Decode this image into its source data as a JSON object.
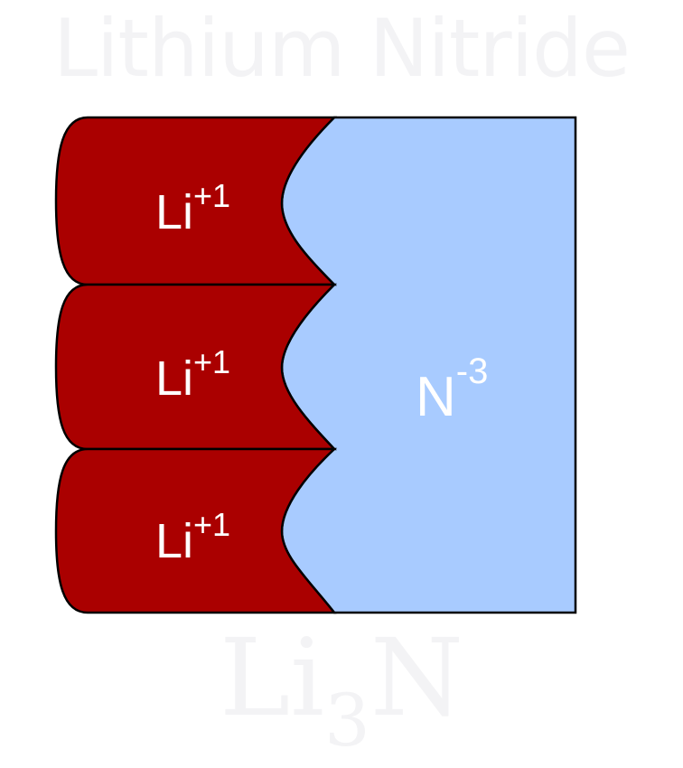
{
  "title": "Lithium Nitride",
  "cations": [
    {
      "symbol": "Li",
      "charge": "+1"
    },
    {
      "symbol": "Li",
      "charge": "+1"
    },
    {
      "symbol": "Li",
      "charge": "+1"
    }
  ],
  "anion": {
    "symbol": "N",
    "charge": "-3"
  },
  "formula": {
    "main": "Li",
    "subscript": "3",
    "tail": "N"
  },
  "colors": {
    "title": "#f3f3f5",
    "cation_fill": "#aa0000",
    "anion_fill": "#a8cbff",
    "outline": "#000000",
    "ion_text": "#ffffff",
    "formula_text": "#f3f3f5"
  }
}
